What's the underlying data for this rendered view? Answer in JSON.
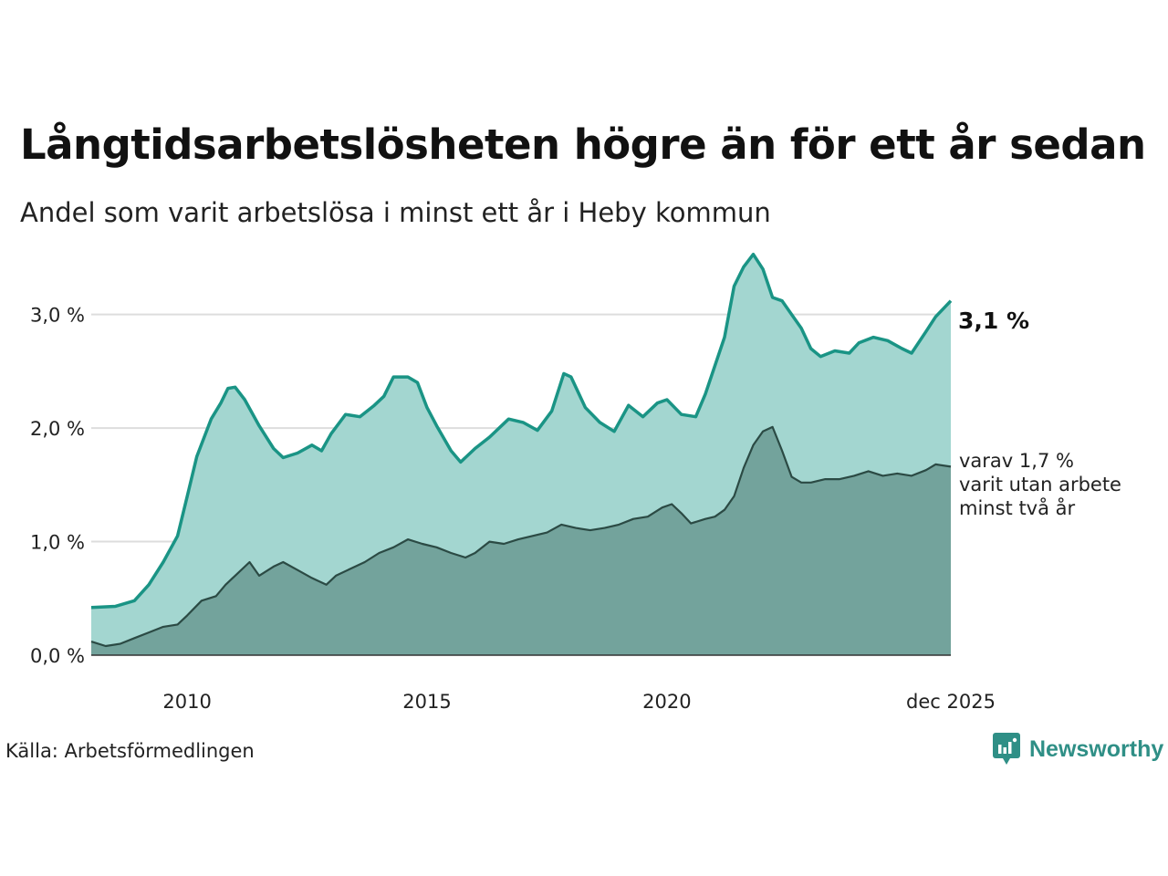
{
  "header": {
    "title": "Långtidsarbetslösheten högre än för ett år sedan",
    "subtitle": "Andel som varit arbetslösa i minst ett år i Heby kommun"
  },
  "footer": {
    "source": "Källa: Arbetsförmedlingen",
    "brand": "Newsworthy"
  },
  "colors": {
    "total_line": "#1a9485",
    "total_fill": "#a3d6d0",
    "sub_line": "#2b4a44",
    "sub_fill": "#6f9e97",
    "grid": "#dddddd",
    "brand": "#2f8f86"
  },
  "chart_data": {
    "type": "area",
    "title": "Långtidsarbetslösheten högre än för ett år sedan",
    "subtitle": "Andel som varit arbetslösa i minst ett år i Heby kommun",
    "xlabel": "",
    "ylabel": "",
    "x_range": [
      2008.0,
      2025.917
    ],
    "ylim": [
      0,
      3.6
    ],
    "yticks": [
      {
        "value": 0,
        "label": "0,0 %"
      },
      {
        "value": 1,
        "label": "1,0 %"
      },
      {
        "value": 2,
        "label": "2,0 %"
      },
      {
        "value": 3,
        "label": "3,0 %"
      }
    ],
    "xticks": [
      {
        "value": 2010,
        "label": "2010"
      },
      {
        "value": 2015,
        "label": "2015"
      },
      {
        "value": 2020,
        "label": "2020"
      },
      {
        "value": 2025.917,
        "label": "dec 2025"
      }
    ],
    "grid": true,
    "series": [
      {
        "name": "Minst ett år",
        "end_label": "3,1 %",
        "points": [
          [
            2008.0,
            0.42
          ],
          [
            2008.5,
            0.43
          ],
          [
            2008.9,
            0.48
          ],
          [
            2009.2,
            0.62
          ],
          [
            2009.5,
            0.82
          ],
          [
            2009.8,
            1.05
          ],
          [
            2010.0,
            1.4
          ],
          [
            2010.2,
            1.75
          ],
          [
            2010.5,
            2.08
          ],
          [
            2010.7,
            2.22
          ],
          [
            2010.85,
            2.35
          ],
          [
            2011.0,
            2.36
          ],
          [
            2011.2,
            2.25
          ],
          [
            2011.5,
            2.02
          ],
          [
            2011.8,
            1.82
          ],
          [
            2012.0,
            1.74
          ],
          [
            2012.3,
            1.78
          ],
          [
            2012.6,
            1.85
          ],
          [
            2012.8,
            1.8
          ],
          [
            2013.0,
            1.95
          ],
          [
            2013.3,
            2.12
          ],
          [
            2013.6,
            2.1
          ],
          [
            2013.9,
            2.2
          ],
          [
            2014.1,
            2.28
          ],
          [
            2014.3,
            2.45
          ],
          [
            2014.6,
            2.45
          ],
          [
            2014.8,
            2.4
          ],
          [
            2015.0,
            2.18
          ],
          [
            2015.2,
            2.02
          ],
          [
            2015.5,
            1.8
          ],
          [
            2015.7,
            1.7
          ],
          [
            2016.0,
            1.82
          ],
          [
            2016.3,
            1.92
          ],
          [
            2016.7,
            2.08
          ],
          [
            2017.0,
            2.05
          ],
          [
            2017.3,
            1.98
          ],
          [
            2017.6,
            2.15
          ],
          [
            2017.85,
            2.48
          ],
          [
            2018.0,
            2.45
          ],
          [
            2018.3,
            2.18
          ],
          [
            2018.6,
            2.05
          ],
          [
            2018.9,
            1.97
          ],
          [
            2019.2,
            2.2
          ],
          [
            2019.5,
            2.1
          ],
          [
            2019.8,
            2.22
          ],
          [
            2020.0,
            2.25
          ],
          [
            2020.3,
            2.12
          ],
          [
            2020.6,
            2.1
          ],
          [
            2020.8,
            2.3
          ],
          [
            2021.0,
            2.55
          ],
          [
            2021.2,
            2.8
          ],
          [
            2021.4,
            3.25
          ],
          [
            2021.6,
            3.42
          ],
          [
            2021.8,
            3.53
          ],
          [
            2022.0,
            3.4
          ],
          [
            2022.2,
            3.15
          ],
          [
            2022.4,
            3.12
          ],
          [
            2022.6,
            3.0
          ],
          [
            2022.8,
            2.88
          ],
          [
            2023.0,
            2.7
          ],
          [
            2023.2,
            2.63
          ],
          [
            2023.5,
            2.68
          ],
          [
            2023.8,
            2.66
          ],
          [
            2024.0,
            2.75
          ],
          [
            2024.3,
            2.8
          ],
          [
            2024.6,
            2.77
          ],
          [
            2024.9,
            2.7
          ],
          [
            2025.1,
            2.66
          ],
          [
            2025.4,
            2.85
          ],
          [
            2025.6,
            2.98
          ],
          [
            2025.917,
            3.12
          ]
        ]
      },
      {
        "name": "varav minst två år",
        "end_label": "varav 1,7 % varit utan arbete minst två år",
        "end_label_lines": [
          "varav 1,7 %",
          "varit utan arbete",
          "minst två år"
        ],
        "points": [
          [
            2008.0,
            0.12
          ],
          [
            2008.3,
            0.08
          ],
          [
            2008.6,
            0.1
          ],
          [
            2008.9,
            0.15
          ],
          [
            2009.2,
            0.2
          ],
          [
            2009.5,
            0.25
          ],
          [
            2009.8,
            0.27
          ],
          [
            2010.0,
            0.35
          ],
          [
            2010.3,
            0.48
          ],
          [
            2010.6,
            0.52
          ],
          [
            2010.8,
            0.62
          ],
          [
            2011.0,
            0.7
          ],
          [
            2011.3,
            0.82
          ],
          [
            2011.5,
            0.7
          ],
          [
            2011.8,
            0.78
          ],
          [
            2012.0,
            0.82
          ],
          [
            2012.3,
            0.75
          ],
          [
            2012.6,
            0.68
          ],
          [
            2012.9,
            0.62
          ],
          [
            2013.1,
            0.7
          ],
          [
            2013.4,
            0.76
          ],
          [
            2013.7,
            0.82
          ],
          [
            2014.0,
            0.9
          ],
          [
            2014.3,
            0.95
          ],
          [
            2014.6,
            1.02
          ],
          [
            2014.9,
            0.98
          ],
          [
            2015.2,
            0.95
          ],
          [
            2015.5,
            0.9
          ],
          [
            2015.8,
            0.86
          ],
          [
            2016.0,
            0.9
          ],
          [
            2016.3,
            1.0
          ],
          [
            2016.6,
            0.98
          ],
          [
            2016.9,
            1.02
          ],
          [
            2017.2,
            1.05
          ],
          [
            2017.5,
            1.08
          ],
          [
            2017.8,
            1.15
          ],
          [
            2018.1,
            1.12
          ],
          [
            2018.4,
            1.1
          ],
          [
            2018.7,
            1.12
          ],
          [
            2019.0,
            1.15
          ],
          [
            2019.3,
            1.2
          ],
          [
            2019.6,
            1.22
          ],
          [
            2019.9,
            1.3
          ],
          [
            2020.1,
            1.33
          ],
          [
            2020.3,
            1.25
          ],
          [
            2020.5,
            1.16
          ],
          [
            2020.8,
            1.2
          ],
          [
            2021.0,
            1.22
          ],
          [
            2021.2,
            1.28
          ],
          [
            2021.4,
            1.4
          ],
          [
            2021.6,
            1.65
          ],
          [
            2021.8,
            1.85
          ],
          [
            2022.0,
            1.97
          ],
          [
            2022.2,
            2.01
          ],
          [
            2022.4,
            1.8
          ],
          [
            2022.6,
            1.57
          ],
          [
            2022.8,
            1.52
          ],
          [
            2023.0,
            1.52
          ],
          [
            2023.3,
            1.55
          ],
          [
            2023.6,
            1.55
          ],
          [
            2023.9,
            1.58
          ],
          [
            2024.2,
            1.62
          ],
          [
            2024.5,
            1.58
          ],
          [
            2024.8,
            1.6
          ],
          [
            2025.1,
            1.58
          ],
          [
            2025.4,
            1.63
          ],
          [
            2025.6,
            1.68
          ],
          [
            2025.917,
            1.66
          ]
        ]
      }
    ]
  }
}
